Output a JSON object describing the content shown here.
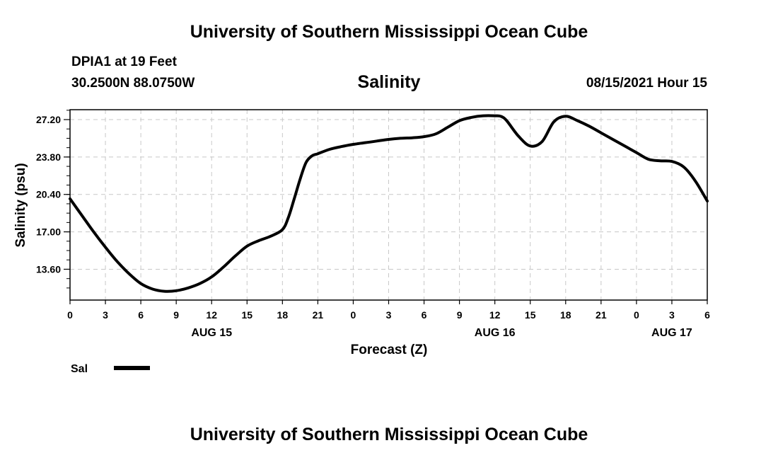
{
  "header": {
    "title": "University of Southern Mississippi Ocean Cube",
    "station": "DPIA1 at 19 Feet",
    "coords": "30.2500N  88.0750W",
    "datetime": "08/15/2021 Hour 15"
  },
  "footer": {
    "title": "University of Southern Mississippi Ocean Cube"
  },
  "chart_data": {
    "type": "line",
    "title": "Salinity",
    "xlabel": "Forecast (Z)",
    "ylabel": "Salinity (psu)",
    "xlim": [
      0,
      54
    ],
    "ylim": [
      10.8,
      28.1
    ],
    "x_ticks": [
      0,
      3,
      6,
      9,
      12,
      15,
      18,
      21,
      24,
      27,
      30,
      33,
      36,
      39,
      42,
      45,
      48,
      51,
      54
    ],
    "x_tick_labels": [
      "0",
      "3",
      "6",
      "9",
      "12",
      "15",
      "18",
      "21",
      "0",
      "3",
      "6",
      "9",
      "12",
      "15",
      "18",
      "21",
      "0",
      "3",
      "6"
    ],
    "y_ticks": [
      13.6,
      17.0,
      20.4,
      23.8,
      27.2
    ],
    "y_tick_labels": [
      "13.60",
      "17.00",
      "20.40",
      "23.80",
      "27.20"
    ],
    "day_labels": [
      {
        "x": 12,
        "label": "AUG 15"
      },
      {
        "x": 36,
        "label": "AUG 16"
      },
      {
        "x": 51,
        "label": "AUG 17"
      }
    ],
    "grid": true,
    "legend_position": "bottom-left",
    "series": [
      {
        "name": "Sal",
        "color": "#000000",
        "x": [
          0,
          1,
          2,
          3,
          4,
          5,
          6,
          7,
          8,
          9,
          10,
          11,
          12,
          13,
          14,
          15,
          16,
          17,
          18,
          18.5,
          19,
          19.5,
          20,
          20.5,
          21,
          22,
          23,
          24,
          25,
          26,
          27,
          28,
          29,
          30,
          31,
          32,
          33,
          34,
          35,
          36,
          36.5,
          37,
          38,
          39,
          40,
          41,
          42,
          43,
          44,
          45,
          46,
          47,
          48,
          49,
          50,
          51,
          52,
          53,
          54
        ],
        "values": [
          20.0,
          18.5,
          17.0,
          15.6,
          14.3,
          13.2,
          12.3,
          11.8,
          11.6,
          11.65,
          11.9,
          12.3,
          12.9,
          13.8,
          14.8,
          15.7,
          16.2,
          16.6,
          17.2,
          18.3,
          20.0,
          21.8,
          23.3,
          23.9,
          24.1,
          24.5,
          24.75,
          24.95,
          25.1,
          25.25,
          25.4,
          25.5,
          25.55,
          25.65,
          25.9,
          26.5,
          27.1,
          27.4,
          27.55,
          27.55,
          27.5,
          27.1,
          25.7,
          24.8,
          25.2,
          27.0,
          27.5,
          27.1,
          26.6,
          26.0,
          25.4,
          24.8,
          24.2,
          23.6,
          23.45,
          23.4,
          22.9,
          21.6,
          19.8
        ]
      }
    ]
  }
}
